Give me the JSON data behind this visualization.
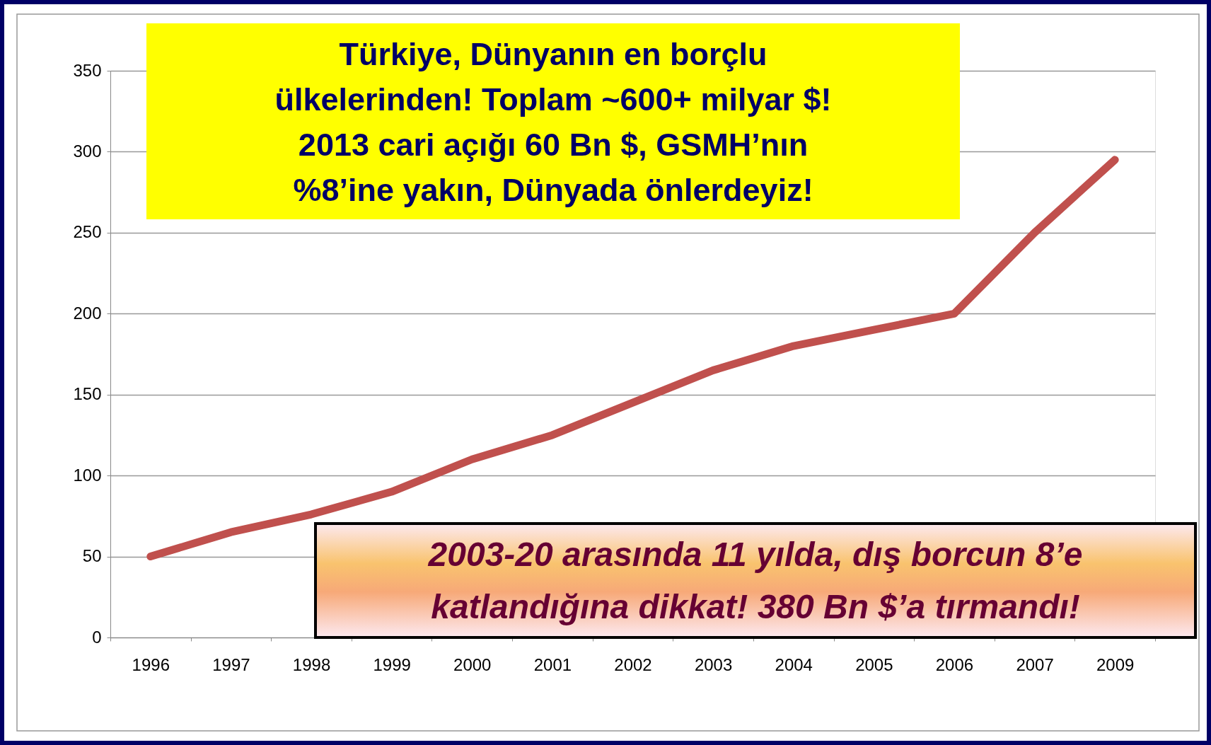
{
  "chart_data": {
    "type": "line",
    "categories": [
      "1996",
      "1997",
      "1998",
      "1999",
      "2000",
      "2001",
      "2002",
      "2003",
      "2004",
      "2005",
      "2006",
      "2007",
      "2009"
    ],
    "series": [
      {
        "color": "#c0504d",
        "values": [
          50,
          65,
          76,
          90,
          110,
          125,
          145,
          165,
          180,
          190,
          200,
          250,
          295
        ]
      }
    ],
    "ylim": [
      0,
      350
    ],
    "yticks": [
      0,
      50,
      100,
      150,
      200,
      250,
      300,
      350
    ],
    "grid": "y",
    "legend": false,
    "marker": "none",
    "line_style": "solid",
    "annotations": [
      "Türkiye, Dünyanın en borçlu\nülkelerinden! Toplam ~600+ milyar $!\n2013 cari açığı 60 Bn $, GSMH’nın\n%8’ine yakın, Dünyada önlerdeyiz!",
      "2003-20 arasında 11 yılda, dış borcun 8’e\nkatlandığına dikkat! 380 Bn $’a tırmandı!"
    ]
  }
}
